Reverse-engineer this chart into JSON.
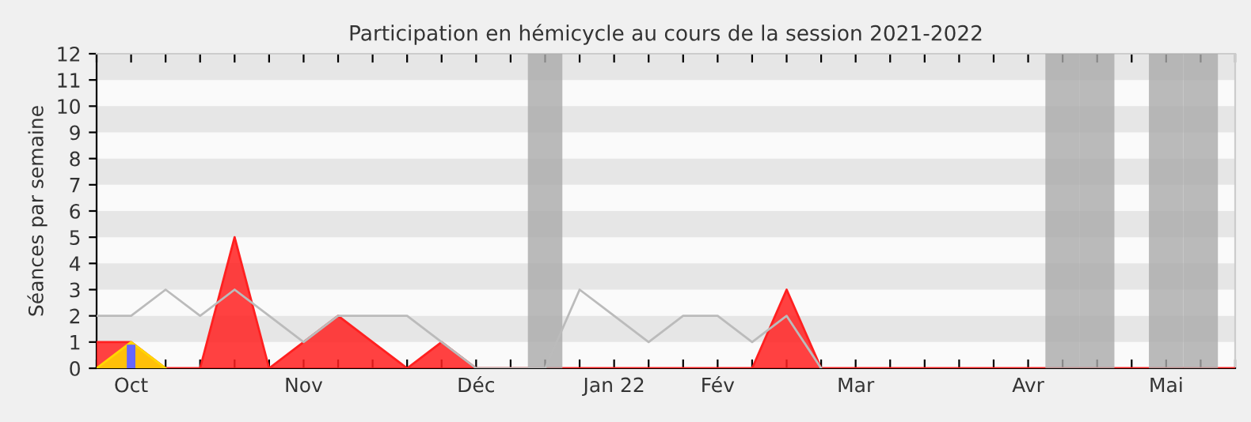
{
  "chart_data": {
    "type": "area",
    "title": "Participation en hémicycle au cours de la session 2021-2022",
    "ylabel": "Séances par semaine",
    "categories": [
      null,
      "Oct",
      null,
      null,
      null,
      null,
      "Nov",
      null,
      null,
      null,
      null,
      "Déc",
      null,
      null,
      null,
      "Jan 22",
      null,
      null,
      "Fév",
      null,
      null,
      null,
      "Mar",
      null,
      null,
      null,
      null,
      "Avr",
      null,
      null,
      null,
      "Mai",
      null,
      null
    ],
    "series": [
      {
        "type": "line",
        "color": "#bbbbbb",
        "values": [
          2,
          2,
          3,
          2,
          3,
          2,
          1,
          2,
          2,
          2,
          1,
          0,
          0,
          0,
          3,
          2,
          1,
          2,
          2,
          1,
          2,
          0,
          null,
          null,
          null,
          null,
          null,
          null,
          null,
          null,
          null,
          null,
          null,
          null
        ]
      },
      {
        "color": "#ff2020",
        "values": [
          1,
          1,
          0,
          0,
          5,
          0,
          1,
          2,
          1,
          0,
          1,
          0,
          0,
          0,
          0,
          0,
          0,
          0,
          0,
          0,
          3,
          0,
          0,
          0,
          0,
          0,
          0,
          0,
          0,
          0,
          0,
          0,
          0,
          0
        ]
      },
      {
        "color": "#ffd700",
        "values": [
          0,
          1,
          0,
          null,
          null,
          null,
          null,
          null,
          null,
          null,
          null,
          null,
          null,
          null,
          null,
          null,
          null,
          null,
          null,
          null,
          null,
          null,
          null,
          null,
          null,
          null,
          null,
          null,
          null,
          null,
          null,
          null,
          null,
          null
        ]
      },
      {
        "type": "bar",
        "color": "#aaaaaa",
        "values": [
          null,
          null,
          null,
          null,
          null,
          null,
          null,
          null,
          null,
          null,
          null,
          null,
          null,
          12,
          null,
          null,
          null,
          null,
          null,
          null,
          null,
          null,
          null,
          null,
          null,
          null,
          null,
          null,
          12,
          12,
          null,
          12,
          12,
          null
        ]
      },
      {
        "type": "bar",
        "color": "#6666ff",
        "values": [
          null,
          0.9,
          null,
          null,
          null,
          null,
          null,
          null,
          null,
          null,
          null,
          null,
          null,
          null,
          null,
          null,
          null,
          null,
          null,
          null,
          null,
          null,
          null,
          null,
          null,
          null,
          null,
          null,
          null,
          null,
          null,
          null,
          null,
          null
        ]
      }
    ],
    "ylim": [
      0,
      12
    ],
    "yticks": [
      0,
      1,
      2,
      3,
      4,
      5,
      6,
      7,
      8,
      9,
      10,
      11,
      12
    ],
    "bands": [
      {
        "axis": "y",
        "from": 1,
        "to": 2,
        "color": "#e6e6e6"
      },
      {
        "axis": "y",
        "from": 3,
        "to": 4,
        "color": "#e6e6e6"
      },
      {
        "axis": "y",
        "from": 5,
        "to": 6,
        "color": "#e6e6e6"
      },
      {
        "axis": "y",
        "from": 7,
        "to": 8,
        "color": "#e6e6e6"
      },
      {
        "axis": "y",
        "from": 9,
        "to": 10,
        "color": "#e6e6e6"
      },
      {
        "axis": "y",
        "from": 11,
        "to": 12,
        "color": "#e6e6e6"
      }
    ],
    "grid": false
  }
}
